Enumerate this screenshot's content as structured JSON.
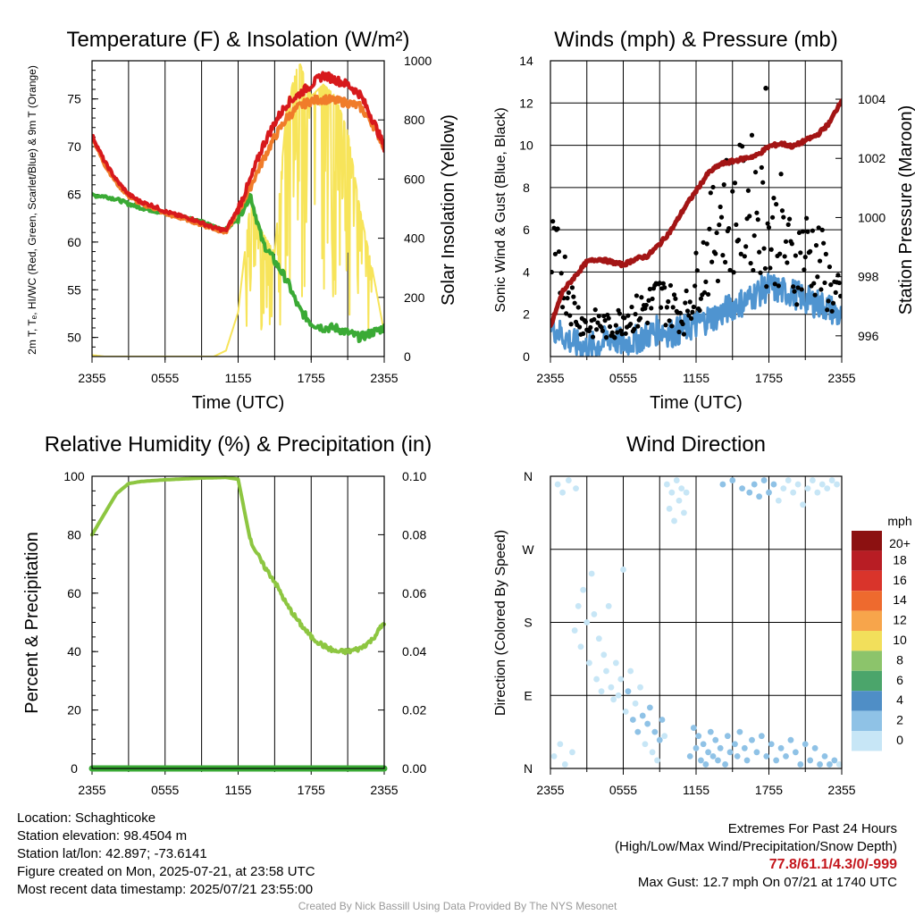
{
  "chart_data": [
    {
      "type": "line",
      "title": "Temperature (F) & Insolation (W/m²)",
      "xlabel": "Time (UTC)",
      "ylabel": "2m T, Tₑ, HI/WC (Red, Green, Scarlet/Blue) & 9m T (Orange)",
      "y2label": "Solar Insolation (Yellow)",
      "x_ticks": [
        "2355",
        "0555",
        "1155",
        "1755",
        "2355"
      ],
      "ylim": [
        48,
        79
      ],
      "y_ticks": [
        50,
        55,
        60,
        65,
        70,
        75
      ],
      "y2lim": [
        0,
        1000
      ],
      "y2_ticks": [
        0,
        200,
        400,
        600,
        800,
        1000
      ],
      "hours": [
        0,
        1,
        2,
        3,
        4,
        5,
        6,
        7,
        8,
        9,
        10,
        11,
        12,
        13,
        14,
        15,
        16,
        17,
        18,
        19,
        20,
        21,
        22,
        23,
        24
      ],
      "series": [
        {
          "name": "2m T",
          "color": "#d7191c",
          "axis": "left",
          "values": [
            71.2,
            68.5,
            66.5,
            65.0,
            64.2,
            63.8,
            63.2,
            62.8,
            62.5,
            62.0,
            61.5,
            61.2,
            63.5,
            66.5,
            70.0,
            72.5,
            74.5,
            75.5,
            76.5,
            77.5,
            77.0,
            76.5,
            75.5,
            73.0,
            70.0
          ]
        },
        {
          "name": "9m T",
          "color": "#f07c2a",
          "axis": "left",
          "values": [
            71.0,
            68.2,
            66.2,
            64.8,
            64.0,
            63.6,
            63.0,
            62.6,
            62.3,
            61.8,
            61.4,
            61.0,
            63.2,
            65.8,
            68.5,
            71.0,
            73.0,
            74.2,
            74.8,
            75.0,
            74.8,
            74.6,
            74.2,
            72.5,
            70.0
          ]
        },
        {
          "name": "Td",
          "color": "#3aaa35",
          "axis": "left",
          "values": [
            64.9,
            64.8,
            64.5,
            64.0,
            63.6,
            63.3,
            63.0,
            62.8,
            62.5,
            62.1,
            61.6,
            61.3,
            62.5,
            65.0,
            60.0,
            58.0,
            56.0,
            53.0,
            51.5,
            51.0,
            51.0,
            50.5,
            50.0,
            50.5,
            51.0
          ]
        },
        {
          "name": "Solar Insolation",
          "color": "#f7e45a",
          "axis": "right",
          "values": [
            5,
            0,
            0,
            0,
            0,
            0,
            0,
            0,
            0,
            0,
            0,
            20,
            150,
            520,
            420,
            350,
            850,
            1000,
            880,
            920,
            880,
            760,
            500,
            300,
            80
          ]
        }
      ]
    },
    {
      "type": "scatter",
      "title": "Winds (mph) & Pressure (mb)",
      "xlabel": "Time (UTC)",
      "ylabel": "Sonic Wind & Gust (Blue, Black)",
      "y2label": "Station Pressure (Maroon)",
      "x_ticks": [
        "2355",
        "0555",
        "1155",
        "1755",
        "2355"
      ],
      "ylim": [
        0,
        14
      ],
      "y_ticks": [
        0,
        2,
        4,
        6,
        8,
        10,
        12,
        14
      ],
      "y2lim": [
        995.3,
        1005.3
      ],
      "y2_ticks": [
        996,
        998,
        1000,
        1002,
        1004
      ],
      "hours": [
        0,
        1,
        2,
        3,
        4,
        5,
        6,
        7,
        8,
        9,
        10,
        11,
        12,
        13,
        14,
        15,
        16,
        17,
        18,
        19,
        20,
        21,
        22,
        23,
        24
      ],
      "series": [
        {
          "name": "Sonic Wind",
          "color": "#4f94d0",
          "axis": "left",
          "values": [
            1.5,
            1.0,
            0.6,
            0.4,
            0.6,
            0.9,
            0.6,
            0.8,
            1.0,
            1.3,
            1.1,
            1.3,
            1.5,
            1.8,
            2.0,
            2.4,
            2.6,
            3.0,
            3.3,
            3.1,
            3.0,
            2.7,
            2.5,
            2.3,
            1.8
          ]
        },
        {
          "name": "Gust",
          "color": "#000000",
          "axis": "left",
          "values": [
            4.7,
            4.0,
            2.2,
            1.4,
            1.6,
            1.3,
            1.9,
            2.0,
            2.4,
            2.8,
            2.4,
            1.9,
            3.5,
            5.0,
            6.8,
            6.8,
            7.1,
            7.4,
            5.6,
            6.0,
            4.2,
            5.1,
            4.7,
            3.4,
            2.4
          ]
        },
        {
          "name": "Station Pressure",
          "color": "#a31515",
          "axis": "right",
          "values": [
            996.3,
            997.5,
            998.0,
            998.5,
            998.6,
            998.5,
            998.4,
            998.6,
            998.7,
            999.1,
            999.6,
            1000.3,
            1000.9,
            1001.5,
            1001.8,
            1001.9,
            1002.0,
            1002.1,
            1002.4,
            1002.5,
            1002.4,
            1002.6,
            1002.8,
            1003.2,
            1004.0
          ]
        }
      ],
      "max_gust": {
        "value": 12.7,
        "hour": 17.75
      }
    },
    {
      "type": "line",
      "title": "Relative Humidity (%) & Precipitation (in)",
      "xlabel": "",
      "ylabel": "Percent & Precipitation",
      "x_ticks": [
        "2355",
        "0555",
        "1155",
        "1755",
        "2355"
      ],
      "ylim": [
        0,
        100
      ],
      "y_ticks": [
        0,
        20,
        40,
        60,
        80,
        100
      ],
      "y2lim": [
        0,
        0.1
      ],
      "y2_ticks": [
        "0.00",
        "0.02",
        "0.04",
        "0.06",
        "0.08",
        "0.10"
      ],
      "hours": [
        0,
        1,
        2,
        3,
        4,
        5,
        6,
        7,
        8,
        9,
        10,
        11,
        12,
        13,
        14,
        15,
        16,
        17,
        18,
        19,
        20,
        21,
        22,
        23,
        24
      ],
      "series": [
        {
          "name": "Relative Humidity",
          "color": "#8dc641",
          "axis": "left",
          "values": [
            80,
            87,
            94,
            97.5,
            98.2,
            98.5,
            98.8,
            99,
            99.2,
            99.4,
            99.5,
            99.6,
            99,
            78,
            70,
            64,
            56,
            50,
            45,
            42,
            40,
            40,
            41,
            44,
            50
          ]
        },
        {
          "name": "Precipitation",
          "color": "#3aaa35",
          "axis": "right",
          "values": [
            0,
            0,
            0,
            0,
            0,
            0,
            0,
            0,
            0,
            0,
            0,
            0,
            0,
            0,
            0,
            0,
            0,
            0,
            0,
            0,
            0,
            0,
            0,
            0,
            0
          ]
        }
      ]
    },
    {
      "type": "scatter",
      "title": "Wind Direction",
      "xlabel": "",
      "ylabel": "Direction (Colored By Speed)",
      "x_ticks": [
        "2355",
        "0555",
        "1155",
        "1755",
        "2355"
      ],
      "y_ticks": [
        "N",
        "E",
        "S",
        "W",
        "N"
      ],
      "ylim": [
        0,
        360
      ],
      "colorbar": {
        "title": "mph",
        "labels": [
          "20+",
          "18",
          "16",
          "14",
          "12",
          "10",
          "8",
          "6",
          "4",
          "2",
          "0"
        ],
        "colors": [
          "#8c1111",
          "#b81d24",
          "#d9342b",
          "#ee6a2e",
          "#f7a54b",
          "#f2df5b",
          "#8cc46b",
          "#4ba56b",
          "#4f8ec6",
          "#8fc2e6",
          "#c7e6f6"
        ]
      },
      "points": [
        {
          "h": 0.3,
          "dir": 15,
          "spd": 1
        },
        {
          "h": 0.6,
          "dir": 350,
          "spd": 0
        },
        {
          "h": 0.8,
          "dir": 30,
          "spd": 1
        },
        {
          "h": 1.0,
          "dir": 340,
          "spd": 0
        },
        {
          "h": 1.2,
          "dir": 5,
          "spd": 1
        },
        {
          "h": 1.5,
          "dir": 355,
          "spd": 0
        },
        {
          "h": 1.8,
          "dir": 20,
          "spd": 1
        },
        {
          "h": 2.1,
          "dir": 345,
          "spd": 0
        },
        {
          "h": 2.0,
          "dir": 170,
          "spd": 1
        },
        {
          "h": 2.3,
          "dir": 200,
          "spd": 1
        },
        {
          "h": 2.5,
          "dir": 150,
          "spd": 0
        },
        {
          "h": 2.7,
          "dir": 220,
          "spd": 1
        },
        {
          "h": 3.0,
          "dir": 180,
          "spd": 0
        },
        {
          "h": 3.2,
          "dir": 130,
          "spd": 1
        },
        {
          "h": 3.4,
          "dir": 240,
          "spd": 0
        },
        {
          "h": 3.6,
          "dir": 190,
          "spd": 1
        },
        {
          "h": 3.8,
          "dir": 110,
          "spd": 0
        },
        {
          "h": 4.0,
          "dir": 160,
          "spd": 1
        },
        {
          "h": 4.2,
          "dir": 95,
          "spd": 1
        },
        {
          "h": 4.4,
          "dir": 140,
          "spd": 0
        },
        {
          "h": 4.6,
          "dir": 120,
          "spd": 1
        },
        {
          "h": 4.8,
          "dir": 200,
          "spd": 0
        },
        {
          "h": 5.0,
          "dir": 100,
          "spd": 1
        },
        {
          "h": 5.2,
          "dir": 85,
          "spd": 0
        },
        {
          "h": 5.4,
          "dir": 130,
          "spd": 1
        },
        {
          "h": 5.6,
          "dir": 90,
          "spd": 0
        },
        {
          "h": 5.8,
          "dir": 110,
          "spd": 1
        },
        {
          "h": 6.0,
          "dir": 245,
          "spd": 0
        },
        {
          "h": 6.2,
          "dir": 70,
          "spd": 1
        },
        {
          "h": 6.4,
          "dir": 95,
          "spd": 2
        },
        {
          "h": 6.6,
          "dir": 120,
          "spd": 1
        },
        {
          "h": 6.8,
          "dir": 60,
          "spd": 2
        },
        {
          "h": 7.0,
          "dir": 80,
          "spd": 1
        },
        {
          "h": 7.2,
          "dir": 45,
          "spd": 2
        },
        {
          "h": 7.4,
          "dir": 100,
          "spd": 1
        },
        {
          "h": 7.6,
          "dir": 65,
          "spd": 2
        },
        {
          "h": 7.8,
          "dir": 30,
          "spd": 1
        },
        {
          "h": 8.0,
          "dir": 55,
          "spd": 2
        },
        {
          "h": 8.2,
          "dir": 75,
          "spd": 3
        },
        {
          "h": 8.4,
          "dir": 20,
          "spd": 1
        },
        {
          "h": 8.6,
          "dir": 45,
          "spd": 2
        },
        {
          "h": 8.8,
          "dir": 10,
          "spd": 1
        },
        {
          "h": 9.0,
          "dir": 35,
          "spd": 2
        },
        {
          "h": 9.2,
          "dir": 60,
          "spd": 3
        },
        {
          "h": 9.4,
          "dir": 40,
          "spd": 1
        },
        {
          "h": 9.6,
          "dir": 350,
          "spd": 0
        },
        {
          "h": 9.8,
          "dir": 320,
          "spd": 1
        },
        {
          "h": 10.0,
          "dir": 340,
          "spd": 0
        },
        {
          "h": 10.2,
          "dir": 305,
          "spd": 1
        },
        {
          "h": 10.4,
          "dir": 355,
          "spd": 0
        },
        {
          "h": 10.6,
          "dir": 330,
          "spd": 1
        },
        {
          "h": 10.8,
          "dir": 345,
          "spd": 1
        },
        {
          "h": 11.0,
          "dir": 315,
          "spd": 0
        },
        {
          "h": 11.2,
          "dir": 340,
          "spd": 1
        },
        {
          "h": 11.5,
          "dir": 15,
          "spd": 2
        },
        {
          "h": 11.8,
          "dir": 50,
          "spd": 2
        },
        {
          "h": 12.0,
          "dir": 25,
          "spd": 3
        },
        {
          "h": 12.2,
          "dir": 40,
          "spd": 2
        },
        {
          "h": 12.4,
          "dir": 10,
          "spd": 3
        },
        {
          "h": 12.6,
          "dir": 30,
          "spd": 2
        },
        {
          "h": 12.8,
          "dir": 5,
          "spd": 3
        },
        {
          "h": 13.0,
          "dir": 20,
          "spd": 2
        },
        {
          "h": 13.2,
          "dir": 45,
          "spd": 3
        },
        {
          "h": 13.4,
          "dir": 15,
          "spd": 2
        },
        {
          "h": 13.6,
          "dir": 35,
          "spd": 3
        },
        {
          "h": 13.8,
          "dir": 10,
          "spd": 2
        },
        {
          "h": 14.0,
          "dir": 25,
          "spd": 3
        },
        {
          "h": 14.2,
          "dir": 350,
          "spd": 2
        },
        {
          "h": 14.4,
          "dir": 5,
          "spd": 3
        },
        {
          "h": 14.6,
          "dir": 40,
          "spd": 2
        },
        {
          "h": 14.8,
          "dir": 20,
          "spd": 3
        },
        {
          "h": 15.0,
          "dir": 355,
          "spd": 2
        },
        {
          "h": 15.2,
          "dir": 30,
          "spd": 3
        },
        {
          "h": 15.4,
          "dir": 15,
          "spd": 2
        },
        {
          "h": 15.6,
          "dir": 45,
          "spd": 3
        },
        {
          "h": 15.8,
          "dir": 345,
          "spd": 2
        },
        {
          "h": 16.0,
          "dir": 25,
          "spd": 3
        },
        {
          "h": 16.2,
          "dir": 10,
          "spd": 2
        },
        {
          "h": 16.4,
          "dir": 340,
          "spd": 3
        },
        {
          "h": 16.6,
          "dir": 35,
          "spd": 2
        },
        {
          "h": 16.8,
          "dir": 350,
          "spd": 3
        },
        {
          "h": 17.0,
          "dir": 20,
          "spd": 2
        },
        {
          "h": 17.2,
          "dir": 335,
          "spd": 3
        },
        {
          "h": 17.4,
          "dir": 40,
          "spd": 2
        },
        {
          "h": 17.6,
          "dir": 355,
          "spd": 3
        },
        {
          "h": 17.8,
          "dir": 15,
          "spd": 2
        },
        {
          "h": 18.0,
          "dir": 340,
          "spd": 3
        },
        {
          "h": 18.2,
          "dir": 30,
          "spd": 2
        },
        {
          "h": 18.4,
          "dir": 350,
          "spd": 3
        },
        {
          "h": 18.6,
          "dir": 10,
          "spd": 2
        },
        {
          "h": 18.8,
          "dir": 330,
          "spd": 1
        },
        {
          "h": 19.0,
          "dir": 25,
          "spd": 2
        },
        {
          "h": 19.2,
          "dir": 345,
          "spd": 1
        },
        {
          "h": 19.4,
          "dir": 15,
          "spd": 2
        },
        {
          "h": 19.6,
          "dir": 355,
          "spd": 1
        },
        {
          "h": 19.8,
          "dir": 35,
          "spd": 2
        },
        {
          "h": 20.0,
          "dir": 340,
          "spd": 1
        },
        {
          "h": 20.2,
          "dir": 20,
          "spd": 2
        },
        {
          "h": 20.4,
          "dir": 350,
          "spd": 1
        },
        {
          "h": 20.6,
          "dir": 5,
          "spd": 2
        },
        {
          "h": 20.8,
          "dir": 325,
          "spd": 1
        },
        {
          "h": 21.0,
          "dir": 30,
          "spd": 2
        },
        {
          "h": 21.2,
          "dir": 345,
          "spd": 1
        },
        {
          "h": 21.4,
          "dir": 10,
          "spd": 2
        },
        {
          "h": 21.6,
          "dir": 355,
          "spd": 1
        },
        {
          "h": 21.8,
          "dir": 25,
          "spd": 2
        },
        {
          "h": 22.0,
          "dir": 340,
          "spd": 1
        },
        {
          "h": 22.2,
          "dir": 5,
          "spd": 2
        },
        {
          "h": 22.4,
          "dir": 350,
          "spd": 1
        },
        {
          "h": 22.6,
          "dir": 15,
          "spd": 2
        },
        {
          "h": 22.8,
          "dir": 345,
          "spd": 1
        },
        {
          "h": 23.0,
          "dir": 5,
          "spd": 2
        },
        {
          "h": 23.2,
          "dir": 355,
          "spd": 1
        },
        {
          "h": 23.4,
          "dir": 10,
          "spd": 2
        },
        {
          "h": 23.6,
          "dir": 350,
          "spd": 1
        },
        {
          "h": 23.8,
          "dir": 5,
          "spd": 1
        }
      ]
    }
  ],
  "footer_left": [
    "Location: Schaghticoke",
    "Station elevation: 98.4504 m",
    "Station lat/lon: 42.897; -73.6141",
    "Figure created on Mon, 2025-07-21, at 23:58 UTC",
    "Most recent data timestamp: 2025/07/21 23:55:00"
  ],
  "footer_right": {
    "title": "Extremes For Past 24 Hours",
    "subtitle": "(High/Low/Max Wind/Precipitation/Snow Depth)",
    "extremes": "77.8/61.1/4.3/0/-999",
    "max_gust": "Max Gust: 12.7 mph On 07/21 at 1740 UTC"
  },
  "credit": "Created By Nick Bassill Using Data Provided By The NYS Mesonet"
}
